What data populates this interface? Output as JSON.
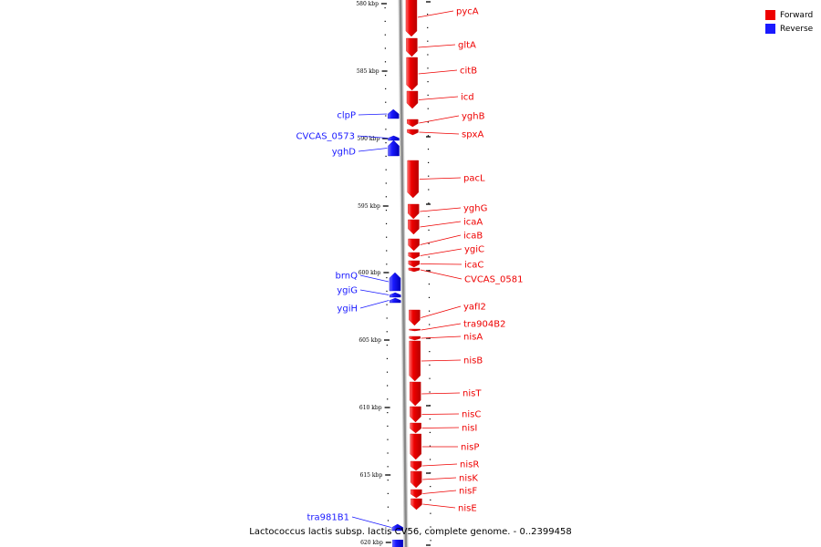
{
  "title": "Lactococcus lactis subsp. lactis CV56, complete genome. - 0..2399458",
  "legend": [
    {
      "label": "Forward",
      "color": "#ee0000"
    },
    {
      "label": "Reverse",
      "color": "#1a1aff"
    }
  ],
  "colors": {
    "forward": "#ee0000",
    "reverse": "#1a1aff",
    "backbone": "#999999",
    "tick": "#000000"
  },
  "ticks": [
    {
      "label": "580 kbp"
    },
    {
      "label": "585 kbp"
    },
    {
      "label": "590 kbp"
    },
    {
      "label": "595 kbp"
    },
    {
      "label": "600 kbp"
    },
    {
      "label": "605 kbp"
    },
    {
      "label": "610 kbp"
    },
    {
      "label": "615 kbp"
    },
    {
      "label": "620 kbp"
    }
  ],
  "genes_forward": [
    {
      "name": "pycA"
    },
    {
      "name": "gltA"
    },
    {
      "name": "citB"
    },
    {
      "name": "icd"
    },
    {
      "name": "yghB"
    },
    {
      "name": "spxA"
    },
    {
      "name": "pacL"
    },
    {
      "name": "yghG"
    },
    {
      "name": "icaA"
    },
    {
      "name": "icaB"
    },
    {
      "name": "ygiC"
    },
    {
      "name": "icaC"
    },
    {
      "name": "CVCAS_0581"
    },
    {
      "name": "yafI2"
    },
    {
      "name": "tra904B2"
    },
    {
      "name": "nisA"
    },
    {
      "name": "nisB"
    },
    {
      "name": "nisT"
    },
    {
      "name": "nisC"
    },
    {
      "name": "nisI"
    },
    {
      "name": "nisP"
    },
    {
      "name": "nisR"
    },
    {
      "name": "nisK"
    },
    {
      "name": "nisF"
    },
    {
      "name": "nisE"
    }
  ],
  "genes_reverse": [
    {
      "name": "clpP"
    },
    {
      "name": "CVCAS_0573"
    },
    {
      "name": "yghD"
    },
    {
      "name": "brnQ"
    },
    {
      "name": "ygiG"
    },
    {
      "name": "ygiH"
    },
    {
      "name": "tra981B1"
    }
  ]
}
